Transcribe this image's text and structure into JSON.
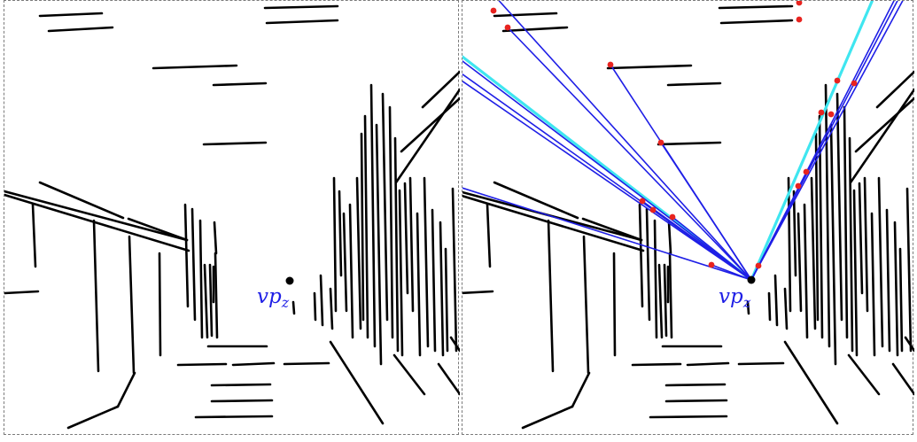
{
  "left_panel": {
    "vp_label": {
      "main": "vp",
      "sub": "z"
    }
  },
  "right_panel": {
    "vp_label": {
      "main": "vp",
      "sub": "z"
    }
  },
  "colors": {
    "segment": "#000000",
    "ray": "#1f1fe6",
    "highlight_ray": "#3fe6f0",
    "endpoint": "#e8231f",
    "vanishing_point": "#000000",
    "border": "#7a7a7a"
  }
}
